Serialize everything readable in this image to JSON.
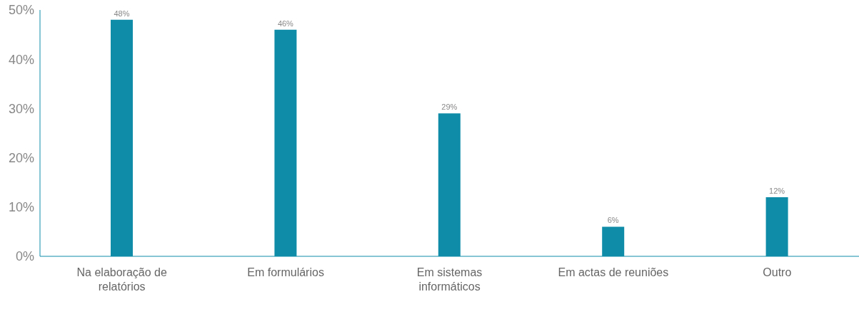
{
  "chart_data": {
    "type": "bar",
    "categories": [
      "Na elaboração de relatórios",
      "Em formulários",
      "Em sistemas informáticos",
      "Em actas de reuniões",
      "Outro"
    ],
    "values": [
      48,
      46,
      29,
      6,
      12
    ],
    "value_labels": [
      "48%",
      "46%",
      "29%",
      "6%",
      "12%"
    ],
    "color": "#0f8ca8",
    "ylim": [
      0,
      50
    ],
    "yticks": [
      {
        "value": 0,
        "label": "0%"
      },
      {
        "value": 10,
        "label": "10%"
      },
      {
        "value": 20,
        "label": "20%"
      },
      {
        "value": 30,
        "label": "30%"
      },
      {
        "value": 40,
        "label": "40%"
      },
      {
        "value": 50,
        "label": "50%"
      }
    ],
    "grid": false,
    "legend": false
  }
}
